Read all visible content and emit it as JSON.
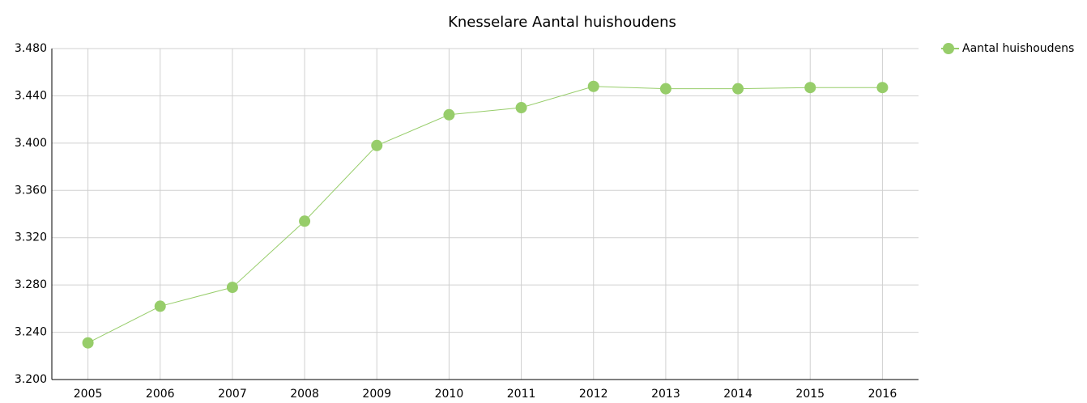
{
  "chart_data": {
    "type": "line",
    "title": "Knesselare  Aantal huishoudens",
    "categories": [
      "2005",
      "2006",
      "2007",
      "2008",
      "2009",
      "2010",
      "2011",
      "2012",
      "2013",
      "2014",
      "2015",
      "2016"
    ],
    "series": [
      {
        "name": "Aantal huishoudens",
        "color": "#97cd6a",
        "values": [
          3231,
          3262,
          3278,
          3334,
          3398,
          3424,
          3430,
          3448,
          3446,
          3446,
          3447,
          3447
        ]
      }
    ],
    "ylim": [
      3200,
      3480
    ],
    "yticks": [
      {
        "value": 3200,
        "label": "3.200"
      },
      {
        "value": 3240,
        "label": "3.240"
      },
      {
        "value": 3280,
        "label": "3.280"
      },
      {
        "value": 3320,
        "label": "3.320"
      },
      {
        "value": 3360,
        "label": "3.360"
      },
      {
        "value": 3400,
        "label": "3.400"
      },
      {
        "value": 3440,
        "label": "3.440"
      },
      {
        "value": 3480,
        "label": "3.480"
      }
    ],
    "grid": true,
    "legend": "top-right"
  }
}
